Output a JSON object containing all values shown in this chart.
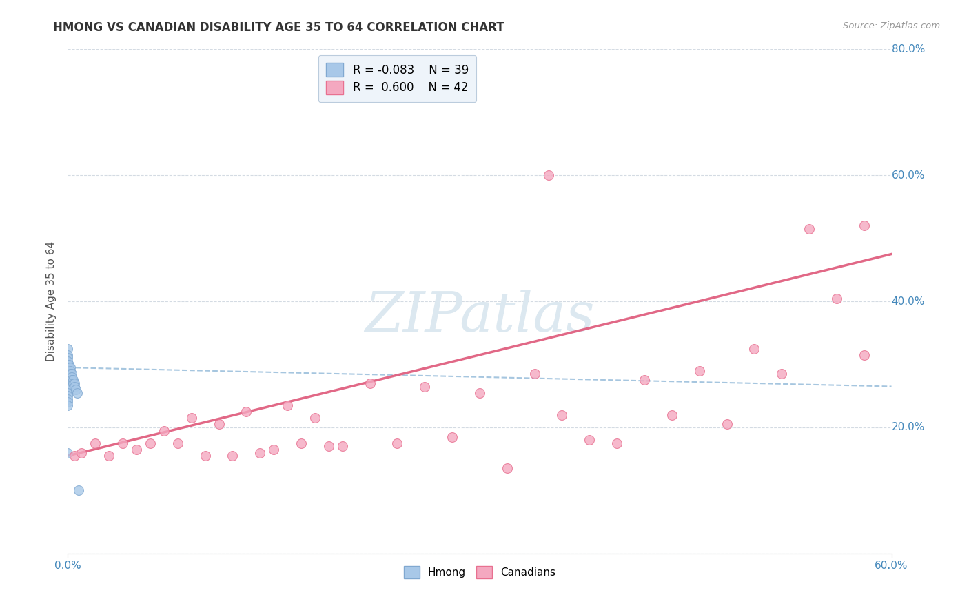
{
  "title": "HMONG VS CANADIAN DISABILITY AGE 35 TO 64 CORRELATION CHART",
  "source": "Source: ZipAtlas.com",
  "ylabel": "Disability Age 35 to 64",
  "xlim": [
    0.0,
    0.6
  ],
  "ylim": [
    0.0,
    0.8
  ],
  "xticks": [
    0.0,
    0.6
  ],
  "xticklabels": [
    "0.0%",
    "60.0%"
  ],
  "yticks": [
    0.0,
    0.2,
    0.4,
    0.6,
    0.8
  ],
  "yticklabels_right": [
    "",
    "20.0%",
    "40.0%",
    "60.0%",
    "80.0%"
  ],
  "hmong_color": "#a8c8e8",
  "canadian_color": "#f4a8c0",
  "hmong_edge_color": "#80a8d0",
  "canadian_edge_color": "#e87090",
  "trendline_hmong_color": "#90b8d8",
  "trendline_canadian_color": "#e06080",
  "watermark_color": "#dce8f0",
  "legend_box_color": "#eef4fa",
  "background_color": "#ffffff",
  "grid_color": "#d0d8e0",
  "axis_label_color": "#5599cc",
  "tick_label_color": "#4488bb",
  "hmong_R": -0.083,
  "hmong_N": 39,
  "canadian_R": 0.6,
  "canadian_N": 42,
  "hmong_x": [
    0.0,
    0.0,
    0.0,
    0.0,
    0.0,
    0.0,
    0.0,
    0.0,
    0.0,
    0.0,
    0.0,
    0.0,
    0.0,
    0.0,
    0.0,
    0.0,
    0.0,
    0.0,
    0.0,
    0.0,
    0.001,
    0.001,
    0.001,
    0.001,
    0.001,
    0.002,
    0.002,
    0.002,
    0.002,
    0.003,
    0.003,
    0.003,
    0.004,
    0.004,
    0.005,
    0.005,
    0.006,
    0.007,
    0.008
  ],
  "hmong_y": [
    0.3,
    0.325,
    0.315,
    0.31,
    0.305,
    0.3,
    0.295,
    0.29,
    0.285,
    0.28,
    0.275,
    0.27,
    0.265,
    0.26,
    0.255,
    0.25,
    0.245,
    0.24,
    0.235,
    0.16,
    0.3,
    0.295,
    0.29,
    0.285,
    0.28,
    0.295,
    0.29,
    0.285,
    0.28,
    0.285,
    0.28,
    0.275,
    0.275,
    0.27,
    0.27,
    0.265,
    0.26,
    0.255,
    0.1
  ],
  "canadian_x": [
    0.005,
    0.01,
    0.02,
    0.03,
    0.04,
    0.05,
    0.06,
    0.07,
    0.08,
    0.09,
    0.1,
    0.11,
    0.12,
    0.13,
    0.14,
    0.15,
    0.16,
    0.17,
    0.18,
    0.19,
    0.2,
    0.22,
    0.24,
    0.26,
    0.28,
    0.3,
    0.32,
    0.34,
    0.36,
    0.38,
    0.4,
    0.42,
    0.44,
    0.46,
    0.48,
    0.5,
    0.52,
    0.54,
    0.56,
    0.58,
    0.58,
    0.35
  ],
  "canadian_y": [
    0.155,
    0.16,
    0.175,
    0.155,
    0.175,
    0.165,
    0.175,
    0.195,
    0.175,
    0.215,
    0.155,
    0.205,
    0.155,
    0.225,
    0.16,
    0.165,
    0.235,
    0.175,
    0.215,
    0.17,
    0.17,
    0.27,
    0.175,
    0.265,
    0.185,
    0.255,
    0.135,
    0.285,
    0.22,
    0.18,
    0.175,
    0.275,
    0.22,
    0.29,
    0.205,
    0.325,
    0.285,
    0.515,
    0.405,
    0.315,
    0.52,
    0.6
  ],
  "hmong_trendline": [
    0.0,
    0.6,
    0.295,
    0.265
  ],
  "canadian_trendline": [
    0.0,
    0.6,
    0.155,
    0.475
  ],
  "watermark_text": "ZIPatlas",
  "watermark_fontsize": 58
}
